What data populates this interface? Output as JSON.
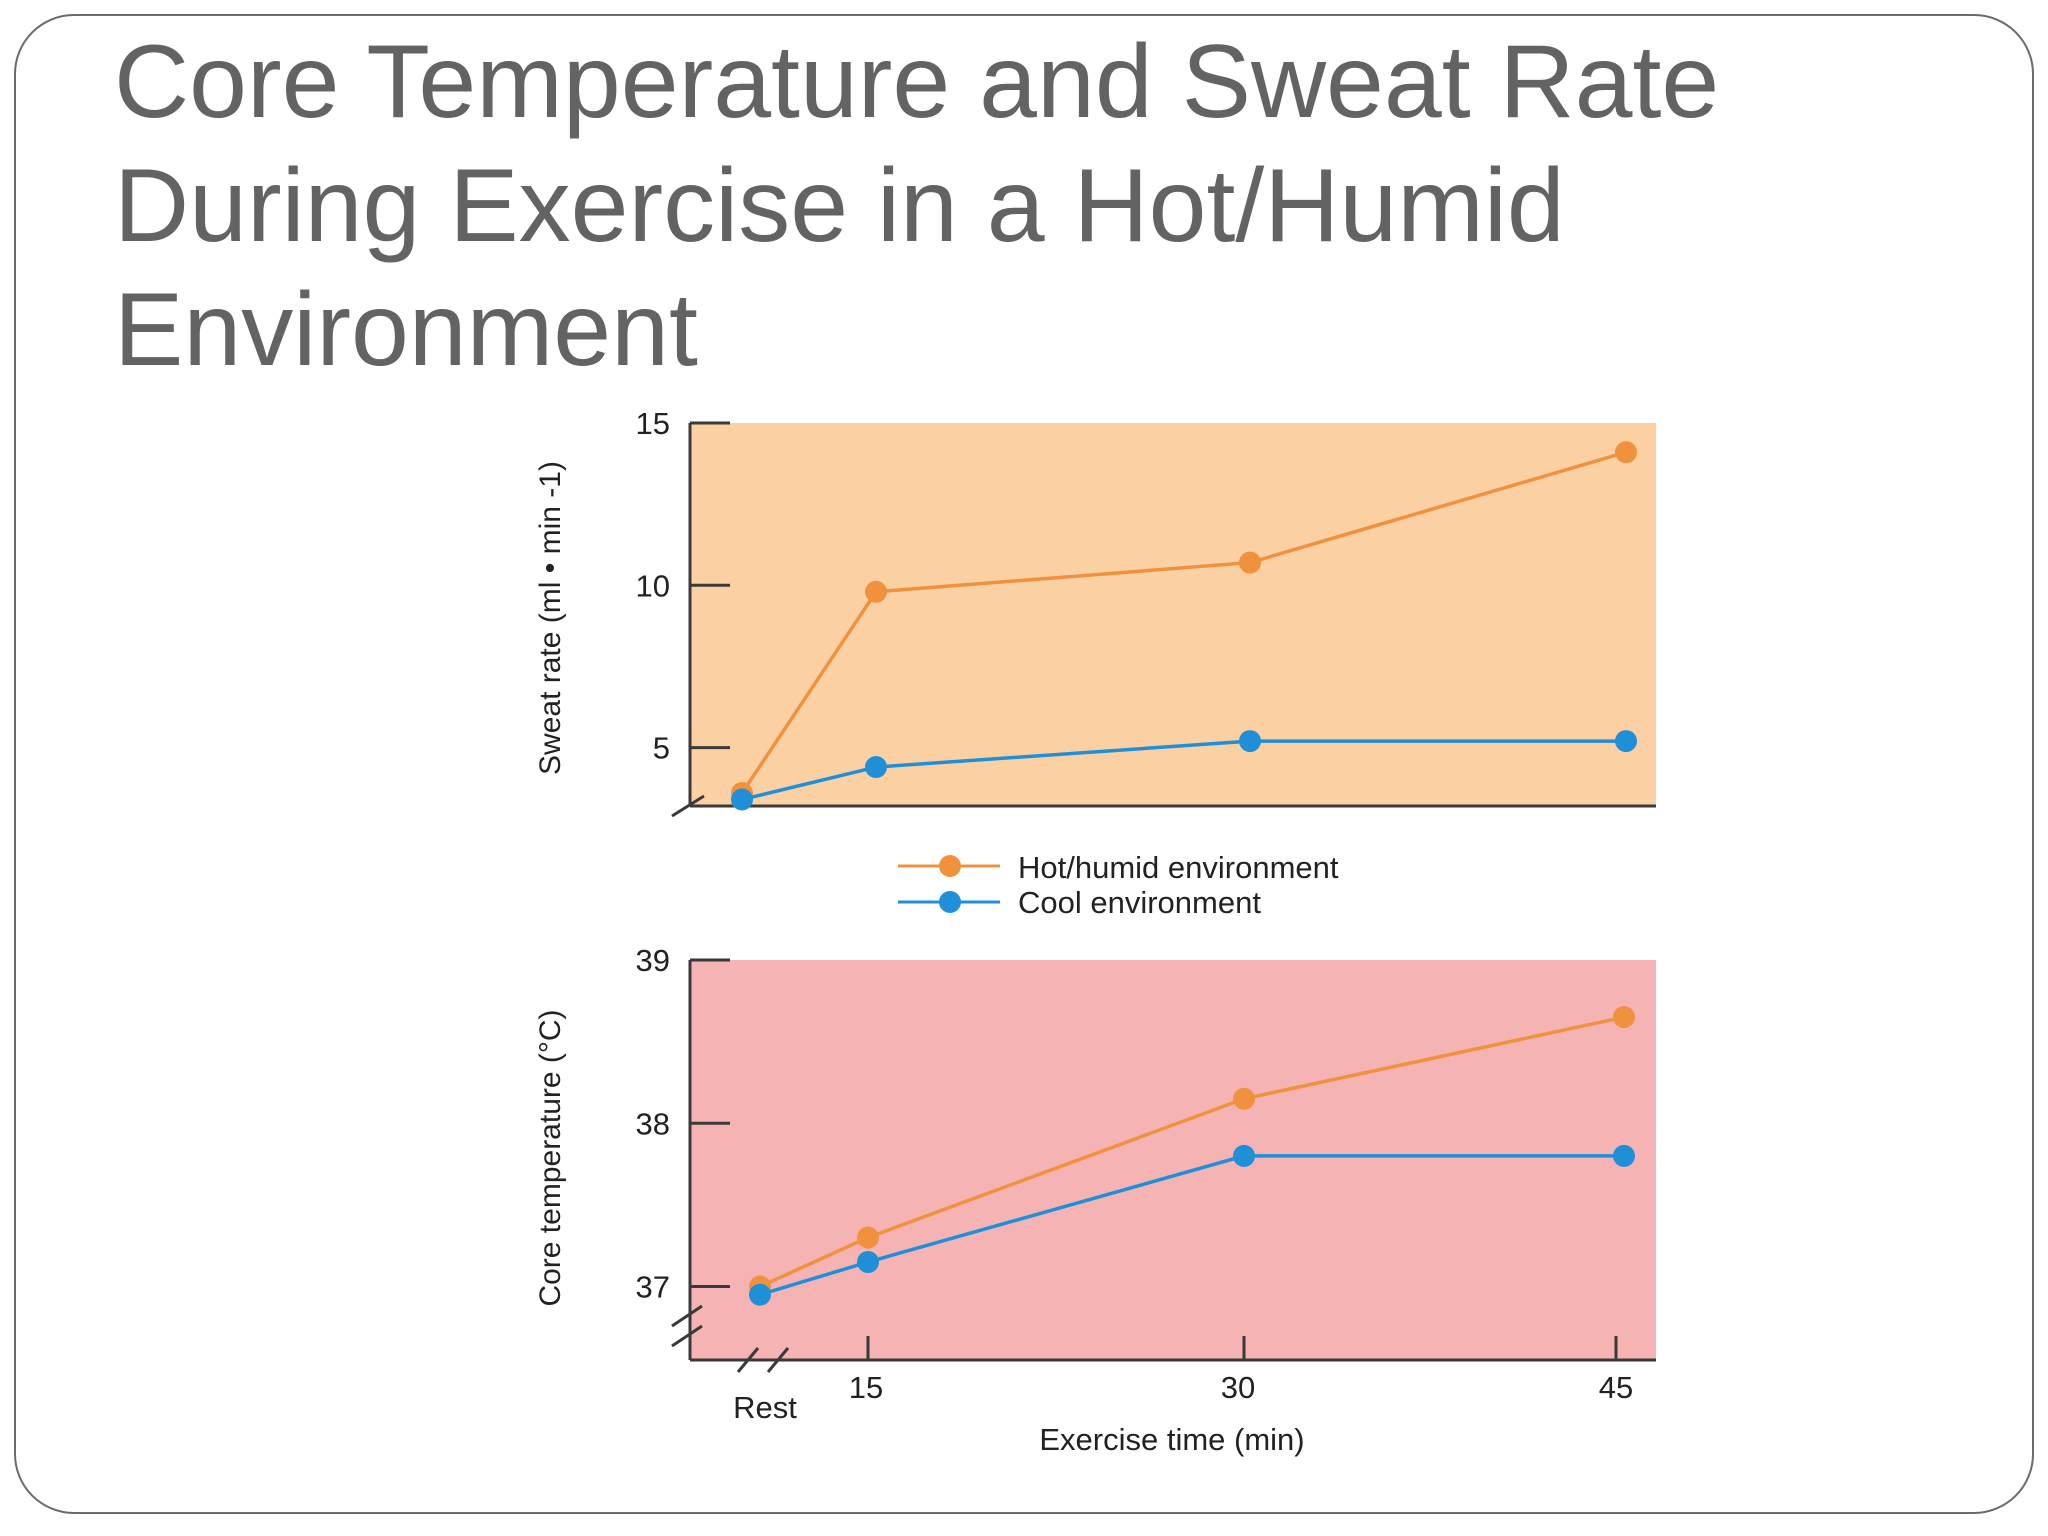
{
  "slide": {
    "title": "Core Temperature and Sweat Rate During Exercise in a Hot/Humid Environment"
  },
  "colors": {
    "hot": "#f0913e",
    "cool": "#1f90d8",
    "top_panel_bg": "#fbd1a3",
    "bottom_panel_bg": "#f5b3b3",
    "axis": "#3a3a3a",
    "text": "#222222"
  },
  "legend": {
    "hot_label": "Hot/humid environment",
    "cool_label": "Cool environment"
  },
  "xaxis": {
    "label": "Exercise time (min)",
    "rest_label": "Rest",
    "ticks": [
      "15",
      "30",
      "45"
    ]
  },
  "chart_data": [
    {
      "type": "line",
      "ylabel": "Sweat rate (ml • min -1)",
      "ylim": [
        3.2,
        15
      ],
      "yticks": [
        5,
        10,
        15
      ],
      "x": [
        "Rest",
        15,
        30,
        45
      ],
      "series": [
        {
          "name": "Hot/humid environment",
          "values": [
            3.6,
            9.8,
            10.7,
            14.1
          ]
        },
        {
          "name": "Cool environment",
          "values": [
            3.4,
            4.4,
            5.2,
            5.2
          ]
        }
      ]
    },
    {
      "type": "line",
      "ylabel": "Core temperature (°C)",
      "ylim": [
        36.55,
        39
      ],
      "yticks": [
        37,
        38,
        39
      ],
      "x": [
        "Rest",
        15,
        30,
        45
      ],
      "series": [
        {
          "name": "Hot/humid environment",
          "values": [
            37.0,
            37.3,
            38.15,
            38.65
          ]
        },
        {
          "name": "Cool environment",
          "values": [
            36.95,
            37.15,
            37.8,
            37.8
          ]
        }
      ]
    }
  ]
}
